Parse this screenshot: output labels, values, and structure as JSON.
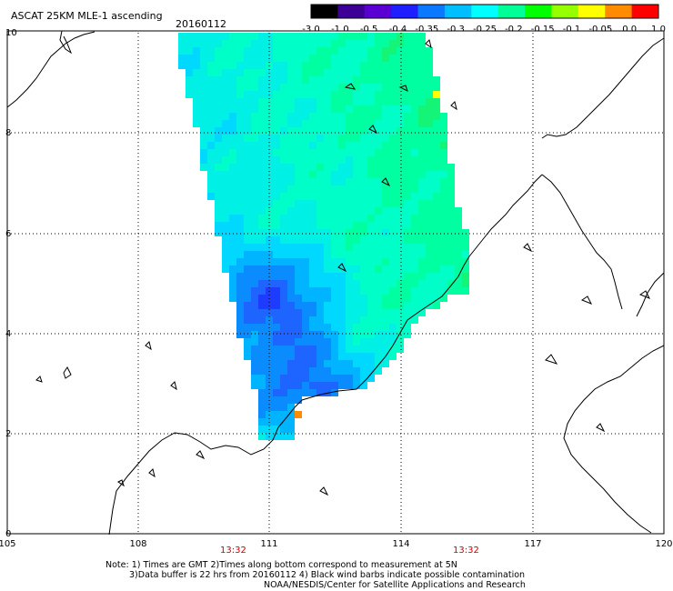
{
  "header": {
    "title": "ASCAT 25KM MLE-1 ascending",
    "date": "20160112"
  },
  "colorbar": {
    "tick_labels": [
      "-3.0",
      "-1.0",
      "-0.5",
      "-0.4",
      "-0.35",
      "-0.3",
      "-0.25",
      "-0.2",
      "-0.15",
      "-0.1",
      "-0.05",
      "0.0",
      "1.0"
    ],
    "colors": [
      "#000000",
      "#3c0096",
      "#5a00d2",
      "#1e1eff",
      "#0a78ff",
      "#00beff",
      "#00ffff",
      "#00ff96",
      "#00ff00",
      "#96ff00",
      "#ffff00",
      "#ff8c00",
      "#ff0000"
    ]
  },
  "map": {
    "x_axis_labels": [
      "105",
      "108",
      "111",
      "114",
      "117",
      "120"
    ],
    "y_axis_labels": [
      "0",
      "2",
      "4",
      "6",
      "8",
      "10"
    ],
    "pass_times": [
      "13:32",
      "13:32"
    ],
    "gridlines": true,
    "coastline_color": "#000000",
    "ocean_color": "#ffffff"
  },
  "footer": {
    "note_line1": "Note: 1) Times are GMT 2)Times along bottom correspond to measurement at 5N",
    "note_line2": "3)Data buffer is 22 hrs from 20160112 4) Black wind barbs indicate possible contamination",
    "note_line3": "NOAA/NESDIS/Center for Satellite Applications and Research"
  }
}
